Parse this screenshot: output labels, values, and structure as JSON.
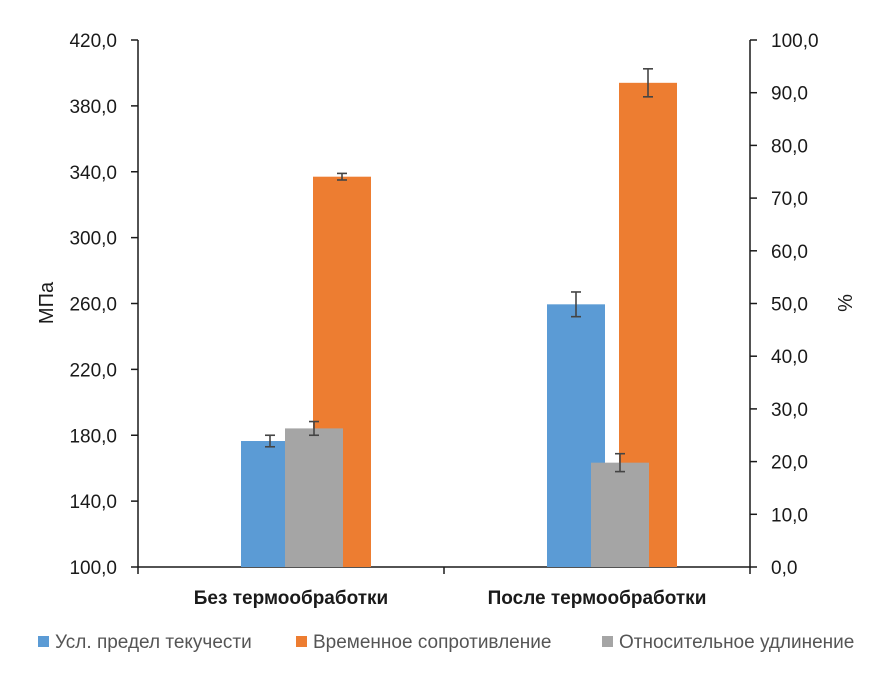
{
  "chart_data": {
    "type": "bar",
    "categories": [
      "Без термообработки",
      "После термообработки"
    ],
    "series": [
      {
        "name": "Усл. предел текучести",
        "axis": "left",
        "color": "#5b9bd5",
        "values": [
          176.5,
          259.5
        ],
        "errors": [
          3.5,
          7.5
        ]
      },
      {
        "name": "Временное сопротивление",
        "axis": "left",
        "color": "#ed7d31",
        "values": [
          337,
          394
        ],
        "errors": [
          2,
          8.5
        ]
      },
      {
        "name": "Относительное удлинение",
        "axis": "right",
        "color": "#a5a5a5",
        "values": [
          26.3,
          19.8
        ],
        "errors": [
          1.3,
          1.7
        ]
      }
    ],
    "y_left": {
      "label": "МПа",
      "ylim": [
        100,
        420
      ],
      "ticks": [
        "100,0",
        "140,0",
        "180,0",
        "220,0",
        "260,0",
        "300,0",
        "340,0",
        "380,0",
        "420,0"
      ]
    },
    "y_right": {
      "label": "%",
      "ylim": [
        0,
        100
      ],
      "ticks": [
        "0,0",
        "10,0",
        "20,0",
        "30,0",
        "40,0",
        "50,0",
        "60,0",
        "70,0",
        "80,0",
        "90,0",
        "100,0"
      ]
    },
    "grid": false,
    "legend_position": "bottom"
  }
}
